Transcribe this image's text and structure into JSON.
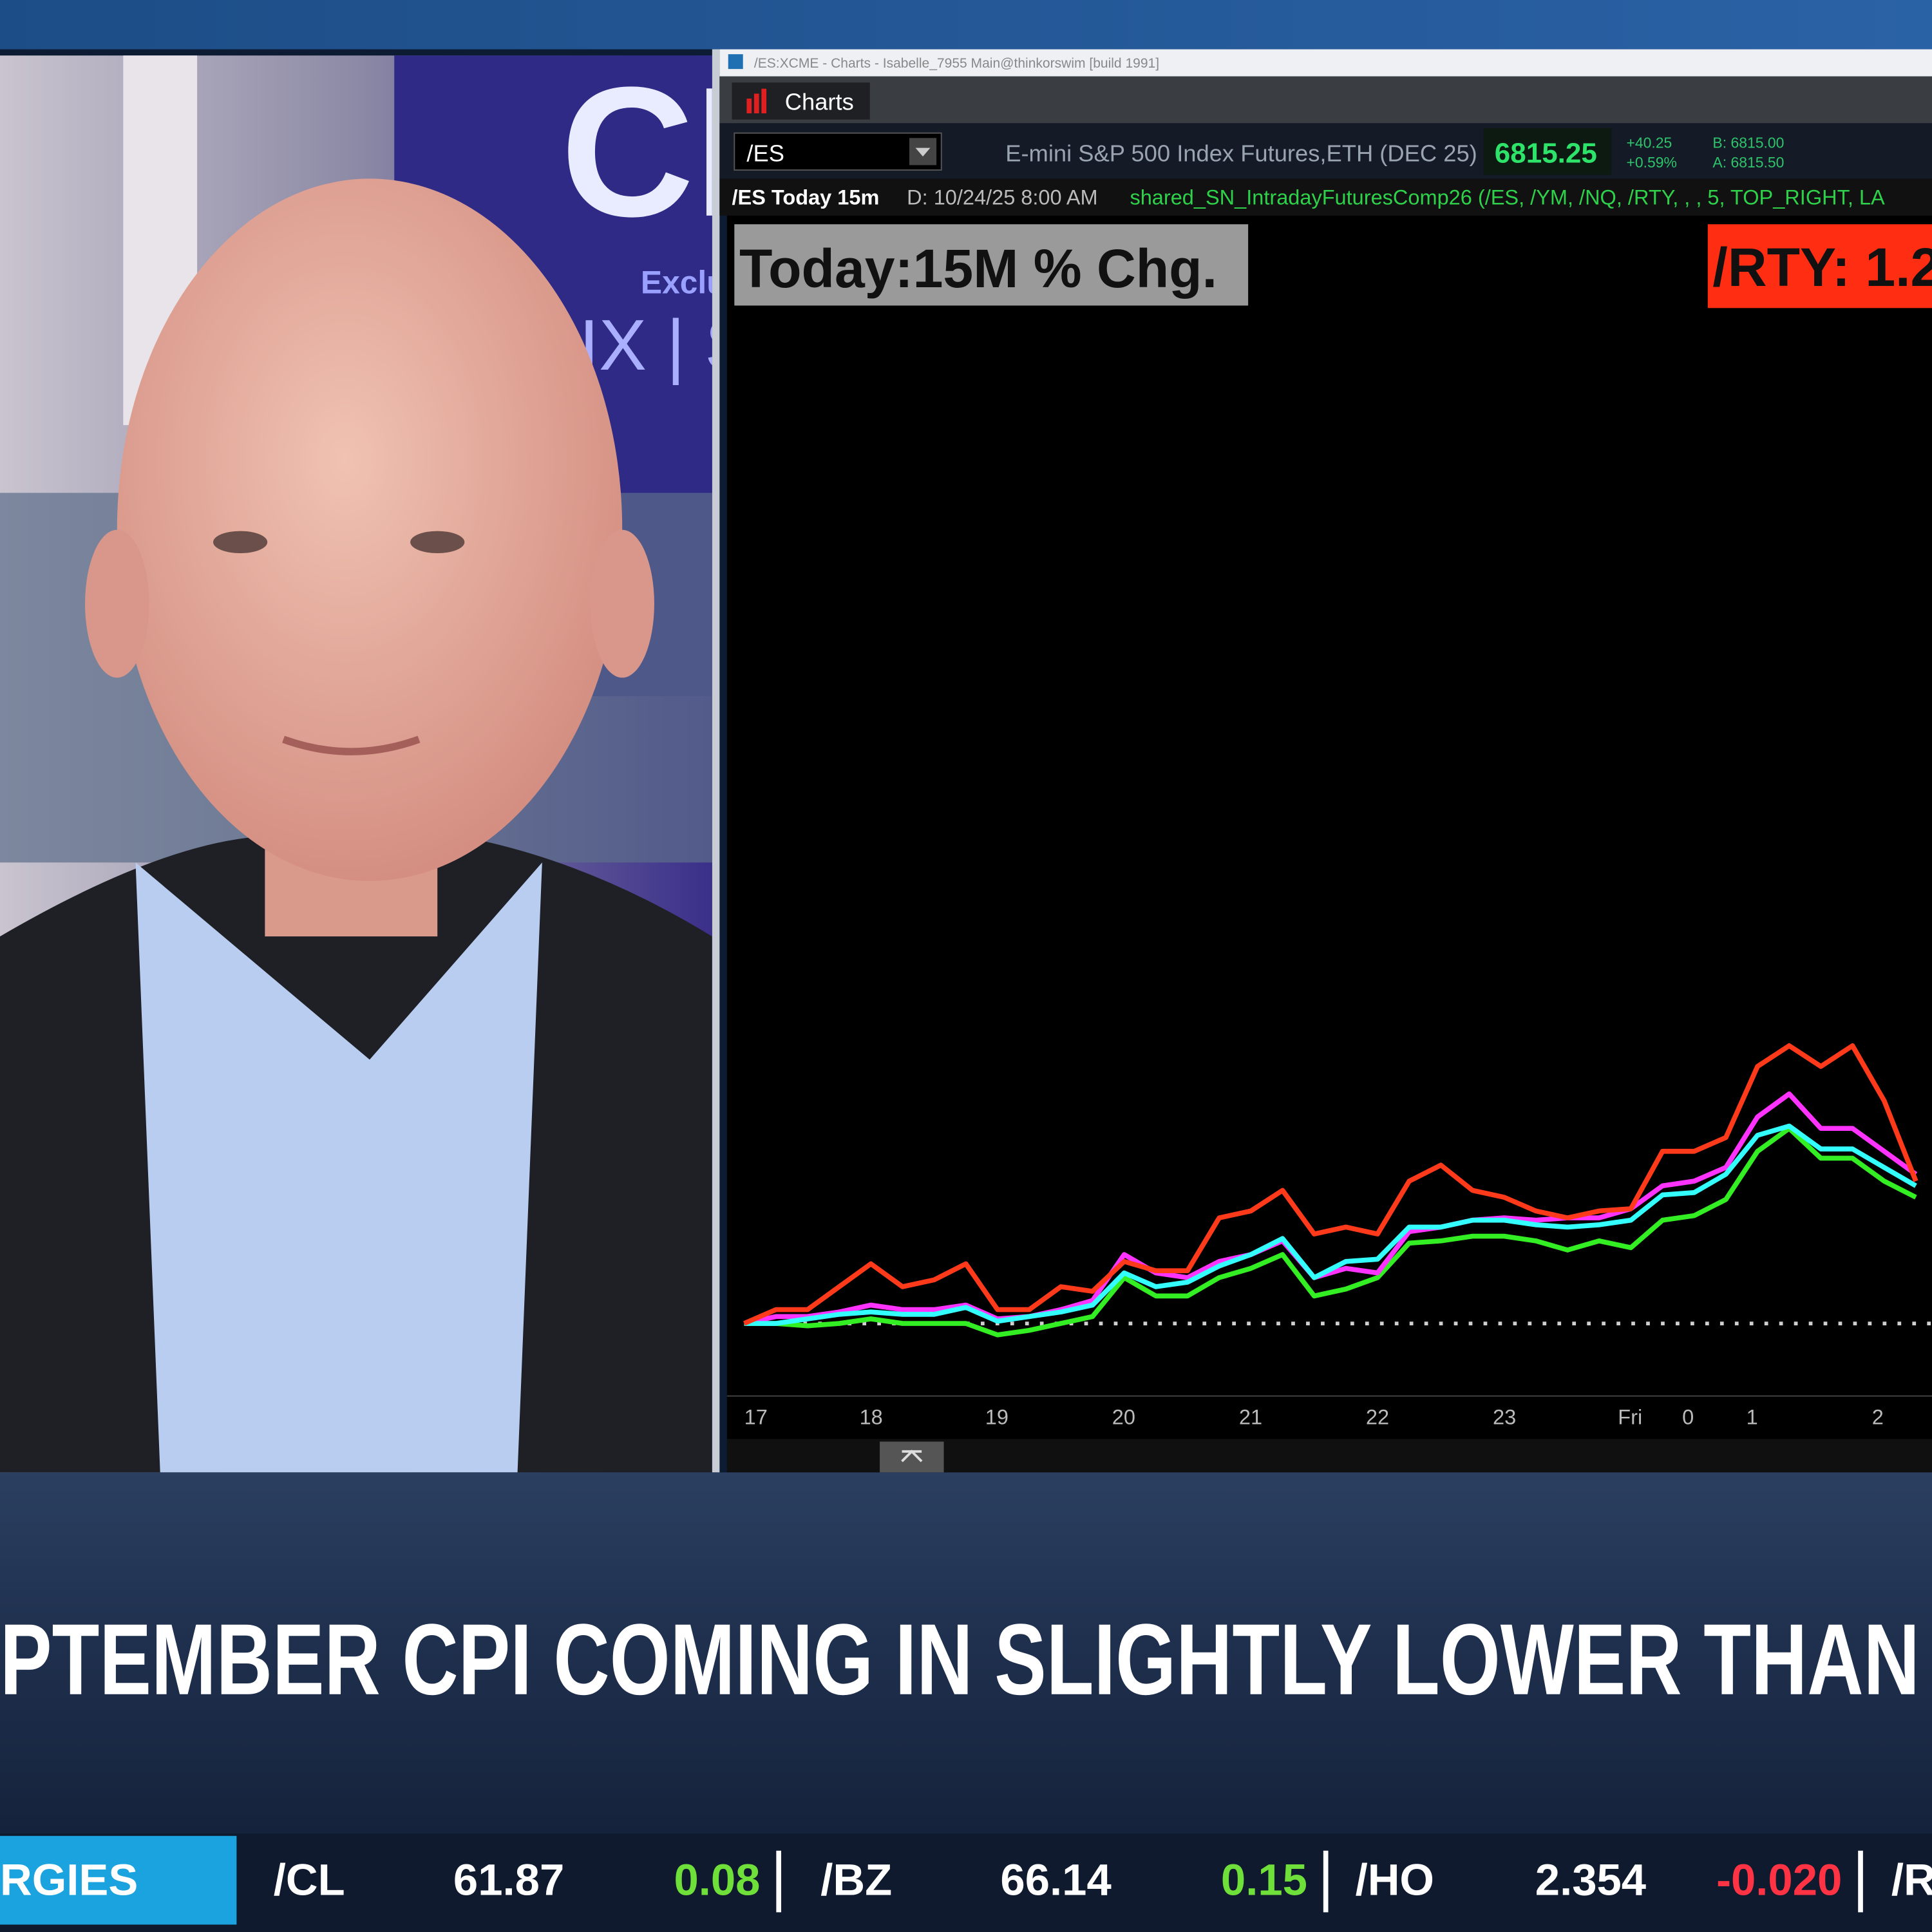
{
  "window": {
    "title": "/ES:XCME - Charts - Isabelle_7955 Main@thinkorswim [build 1991]",
    "tab": "Charts",
    "symbol": "/ES",
    "description": "E-mini S&P 500 Index Futures,ETH (DEC 25)",
    "price": "6815.25",
    "change": "+40.25",
    "change_pct": "+0.59%",
    "bid": "B: 6815.00",
    "ask": "A: 6815.50",
    "chart_name": "/ES Today 15m",
    "chart_date": "D: 10/24/25 8:00 AM",
    "study": "shared_SN_IntradayFuturesComp26 (/ES, /YM, /NQ, /RTY, , , 5, TOP_RIGHT, LA"
  },
  "chart": {
    "type": "line",
    "title": "Today:15M % Chg.",
    "label": "/RTY: 1.2",
    "x_labels": [
      "17",
      "18",
      "19",
      "20",
      "21",
      "22",
      "23",
      "Fri",
      "0",
      "1",
      "2"
    ],
    "ylim": [
      -0.3,
      4.8
    ],
    "reference_line": 0,
    "series": [
      {
        "color": "#33ee22",
        "values": [
          0,
          0,
          -0.01,
          0,
          0.02,
          0,
          0,
          0,
          -0.05,
          -0.03,
          0,
          0.03,
          0.2,
          0.12,
          0.12,
          0.2,
          0.24,
          0.3,
          0.12,
          0.15,
          0.2,
          0.35,
          0.36,
          0.38,
          0.38,
          0.36,
          0.32,
          0.36,
          0.33,
          0.45,
          0.47,
          0.54,
          0.75,
          0.85,
          0.72,
          0.72,
          0.62,
          0.55
        ]
      },
      {
        "color": "#ff33ff",
        "values": [
          0,
          0.03,
          0.03,
          0.05,
          0.08,
          0.06,
          0.06,
          0.08,
          0.02,
          0.03,
          0.06,
          0.1,
          0.3,
          0.22,
          0.2,
          0.27,
          0.3,
          0.36,
          0.2,
          0.24,
          0.22,
          0.4,
          0.42,
          0.45,
          0.46,
          0.45,
          0.46,
          0.46,
          0.5,
          0.6,
          0.62,
          0.68,
          0.9,
          1.0,
          0.85,
          0.85,
          0.75,
          0.65
        ]
      },
      {
        "color": "#33ffff",
        "values": [
          0,
          0,
          0.02,
          0.04,
          0.05,
          0.04,
          0.04,
          0.07,
          0.01,
          0.03,
          0.05,
          0.08,
          0.22,
          0.16,
          0.18,
          0.25,
          0.3,
          0.37,
          0.2,
          0.27,
          0.28,
          0.42,
          0.42,
          0.45,
          0.45,
          0.43,
          0.42,
          0.43,
          0.45,
          0.56,
          0.57,
          0.65,
          0.82,
          0.86,
          0.76,
          0.76,
          0.68,
          0.6
        ]
      },
      {
        "color": "#ff3a1a",
        "values": [
          0,
          0.06,
          0.06,
          0.16,
          0.26,
          0.16,
          0.19,
          0.26,
          0.06,
          0.06,
          0.16,
          0.14,
          0.27,
          0.23,
          0.23,
          0.46,
          0.49,
          0.58,
          0.39,
          0.42,
          0.39,
          0.62,
          0.69,
          0.58,
          0.55,
          0.49,
          0.46,
          0.49,
          0.5,
          0.75,
          0.75,
          0.81,
          1.12,
          1.21,
          1.12,
          1.21,
          0.97,
          0.62
        ]
      }
    ]
  },
  "backdrop": {
    "logo": "CI",
    "sub": "Exclu",
    "line": "IX | S"
  },
  "headline": "PTEMBER CPI COMING IN SLIGHTLY LOWER THAN",
  "ticker": {
    "section": "RGIES",
    "items": [
      {
        "symbol": "/CL",
        "price": "61.87",
        "change": "0.08"
      },
      {
        "symbol": "/BZ",
        "price": "66.14",
        "change": "0.15"
      },
      {
        "symbol": "/HO",
        "price": "2.354",
        "change": "-0.020"
      }
    ],
    "next": "/R"
  }
}
